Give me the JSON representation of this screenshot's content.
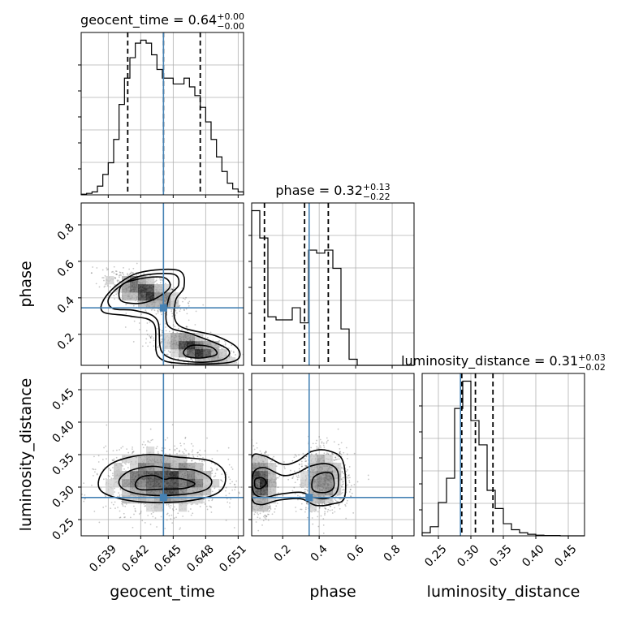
{
  "chart_data": {
    "type": "corner",
    "parameters": [
      {
        "name": "geocent_time",
        "label": "geocent_time",
        "range": [
          0.6365,
          0.6515
        ],
        "ticks": [
          0.639,
          0.642,
          0.645,
          0.648,
          0.651
        ],
        "tick_labels": [
          "0.639",
          "0.642",
          "0.645",
          "0.648",
          "0.651"
        ],
        "truth": 0.6441,
        "quantiles": [
          0.6408,
          0.6441,
          0.6475
        ],
        "title": {
          "main": "geocent_time = 0.64",
          "sup": "+0.00",
          "sub": "−0.00"
        },
        "hist_bins_x": [
          0.6365,
          0.637,
          0.6375,
          0.638,
          0.6385,
          0.639,
          0.6395,
          0.64,
          0.6405,
          0.641,
          0.6415,
          0.642,
          0.6425,
          0.643,
          0.6435,
          0.644,
          0.6445,
          0.645,
          0.6455,
          0.646,
          0.6465,
          0.647,
          0.6475,
          0.648,
          0.6485,
          0.649,
          0.6495,
          0.65,
          0.6505,
          0.651,
          0.6515
        ],
        "hist_counts": [
          0.2,
          0.5,
          1,
          3,
          7,
          11,
          19,
          31,
          40,
          47,
          52,
          53,
          52,
          48,
          43,
          40,
          40,
          38,
          38,
          40,
          37,
          34,
          30,
          25,
          19,
          13,
          8,
          4,
          2,
          1
        ]
      },
      {
        "name": "phase",
        "label": "phase",
        "range": [
          0.03,
          0.92
        ],
        "ticks": [
          0.2,
          0.4,
          0.6,
          0.8
        ],
        "tick_labels": [
          "0.2",
          "0.4",
          "0.6",
          "0.8"
        ],
        "truth": 0.345,
        "quantiles": [
          0.1,
          0.32,
          0.45
        ],
        "title": {
          "main": "phase = 0.32",
          "sup": "+0.13",
          "sub": "−0.22"
        },
        "hist_bins_x": [
          0.03,
          0.0745,
          0.119,
          0.1635,
          0.208,
          0.2525,
          0.297,
          0.3415,
          0.386,
          0.4305,
          0.475,
          0.5195,
          0.564,
          0.6085,
          0.653,
          0.6975,
          0.742,
          0.7865,
          0.831,
          0.8755,
          0.92
        ],
        "hist_counts": [
          51,
          42,
          16,
          15,
          15,
          19,
          14,
          38,
          37,
          38,
          32,
          12,
          2,
          0,
          0,
          0,
          0,
          0,
          0,
          0
        ]
      },
      {
        "name": "luminosity_distance",
        "label": "luminosity_distance",
        "range": [
          0.225,
          0.475
        ],
        "ticks": [
          0.25,
          0.3,
          0.35,
          0.4,
          0.45
        ],
        "tick_labels": [
          "0.25",
          "0.30",
          "0.35",
          "0.40",
          "0.45"
        ],
        "truth": 0.284,
        "quantiles": [
          0.286,
          0.307,
          0.334
        ],
        "title": {
          "main": "luminosity_distance = 0.31",
          "sup": "+0.03",
          "sub": "−0.02"
        },
        "hist_bins_x": [
          0.225,
          0.2375,
          0.25,
          0.2625,
          0.275,
          0.2875,
          0.3,
          0.3125,
          0.325,
          0.3375,
          0.35,
          0.3625,
          0.375,
          0.3875,
          0.4,
          0.4125,
          0.425,
          0.4375,
          0.45,
          0.4625,
          0.475
        ],
        "hist_counts": [
          1,
          3,
          11,
          19,
          42,
          51,
          38,
          30,
          15,
          9,
          4,
          2,
          1,
          0.5,
          0.2,
          0.1,
          0.1,
          0,
          0,
          0
        ]
      }
    ],
    "pairs": [
      {
        "x": "geocent_time",
        "y": "phase",
        "ylim": [
          0.03,
          0.92
        ],
        "ticks_y": [
          0.2,
          0.4,
          0.6,
          0.8
        ],
        "tick_labels_y": [
          "0.2",
          "0.4",
          "0.6",
          "0.8"
        ],
        "modes": [
          {
            "x": 0.6424,
            "y": 0.43,
            "sx": 0.0017,
            "sy": 0.055,
            "rho": -0.6,
            "n": 900
          },
          {
            "x": 0.647,
            "y": 0.12,
            "sx": 0.0017,
            "sy": 0.05,
            "rho": -0.6,
            "n": 900
          }
        ],
        "contours": [
          [
            [
              0.64,
              0.43
            ],
            [
              0.6405,
              0.48
            ],
            [
              0.6425,
              0.51
            ],
            [
              0.6442,
              0.51
            ],
            [
              0.6447,
              0.46
            ],
            [
              0.6435,
              0.4
            ],
            [
              0.642,
              0.37
            ],
            [
              0.6403,
              0.38
            ]
          ],
          [
            [
              0.639,
              0.39
            ],
            [
              0.64,
              0.46
            ],
            [
              0.642,
              0.52
            ],
            [
              0.645,
              0.53
            ],
            [
              0.6455,
              0.47
            ],
            [
              0.6446,
              0.4
            ],
            [
              0.6445,
              0.25
            ],
            [
              0.6468,
              0.2
            ],
            [
              0.65,
              0.12
            ],
            [
              0.6495,
              0.06
            ],
            [
              0.6465,
              0.05
            ],
            [
              0.644,
              0.1
            ],
            [
              0.6435,
              0.28
            ],
            [
              0.6415,
              0.33
            ],
            [
              0.6395,
              0.34
            ]
          ],
          [
            [
              0.6385,
              0.38
            ],
            [
              0.6398,
              0.47
            ],
            [
              0.642,
              0.54
            ],
            [
              0.6455,
              0.55
            ],
            [
              0.646,
              0.46
            ],
            [
              0.6452,
              0.38
            ],
            [
              0.6455,
              0.25
            ],
            [
              0.649,
              0.19
            ],
            [
              0.651,
              0.12
            ],
            [
              0.6505,
              0.05
            ],
            [
              0.646,
              0.04
            ],
            [
              0.6436,
              0.08
            ],
            [
              0.6432,
              0.26
            ],
            [
              0.641,
              0.3
            ],
            [
              0.6386,
              0.32
            ]
          ],
          [
            [
              0.646,
              0.11
            ],
            [
              0.6468,
              0.14
            ],
            [
              0.6485,
              0.13
            ],
            [
              0.649,
              0.09
            ],
            [
              0.6475,
              0.07
            ],
            [
              0.6462,
              0.08
            ]
          ]
        ]
      },
      {
        "x": "geocent_time",
        "y": "luminosity_distance",
        "ylim": [
          0.225,
          0.475
        ],
        "ticks_y": [
          0.25,
          0.3,
          0.35,
          0.4,
          0.45
        ],
        "tick_labels_y": [
          "0.25",
          "0.30",
          "0.35",
          "0.40",
          "0.45"
        ],
        "modes": [
          {
            "x": 0.644,
            "y": 0.31,
            "sx": 0.0026,
            "sy": 0.024,
            "rho": 0,
            "n": 1700
          }
        ],
        "contours": [
          [
            [
              0.642,
              0.296
            ],
            [
              0.6415,
              0.304
            ],
            [
              0.642,
              0.315
            ],
            [
              0.6432,
              0.318
            ],
            [
              0.6442,
              0.312
            ],
            [
              0.6448,
              0.314
            ],
            [
              0.646,
              0.312
            ],
            [
              0.647,
              0.305
            ],
            [
              0.646,
              0.298
            ],
            [
              0.644,
              0.297
            ]
          ],
          [
            [
              0.6405,
              0.296
            ],
            [
              0.64,
              0.31
            ],
            [
              0.641,
              0.325
            ],
            [
              0.643,
              0.332
            ],
            [
              0.645,
              0.328
            ],
            [
              0.647,
              0.326
            ],
            [
              0.6485,
              0.312
            ],
            [
              0.648,
              0.296
            ],
            [
              0.6455,
              0.288
            ],
            [
              0.6425,
              0.288
            ]
          ],
          [
            [
              0.6385,
              0.292
            ],
            [
              0.6382,
              0.315
            ],
            [
              0.6395,
              0.338
            ],
            [
              0.6425,
              0.35
            ],
            [
              0.6455,
              0.346
            ],
            [
              0.6485,
              0.34
            ],
            [
              0.6498,
              0.32
            ],
            [
              0.6492,
              0.292
            ],
            [
              0.646,
              0.278
            ],
            [
              0.6415,
              0.278
            ]
          ]
        ]
      },
      {
        "x": "phase",
        "y": "luminosity_distance",
        "ylim": [
          0.225,
          0.475
        ],
        "ticks_y": [
          0.25,
          0.3,
          0.35,
          0.4,
          0.45
        ],
        "tick_labels_y": [
          "0.25",
          "0.30",
          "0.35",
          "0.40",
          "0.45"
        ],
        "modes": [
          {
            "x": 0.08,
            "y": 0.306,
            "sx": 0.04,
            "sy": 0.022,
            "rho": 0,
            "n": 900
          },
          {
            "x": 0.42,
            "y": 0.31,
            "sx": 0.07,
            "sy": 0.024,
            "rho": 0,
            "n": 1000
          }
        ],
        "contours": [
          [
            [
              0.05,
              0.3
            ],
            [
              0.05,
              0.312
            ],
            [
              0.09,
              0.314
            ],
            [
              0.11,
              0.306
            ],
            [
              0.08,
              0.298
            ]
          ],
          [
            [
              0.36,
              0.3
            ],
            [
              0.37,
              0.315
            ],
            [
              0.42,
              0.322
            ],
            [
              0.47,
              0.32
            ],
            [
              0.48,
              0.3
            ],
            [
              0.44,
              0.292
            ],
            [
              0.38,
              0.293
            ]
          ],
          [
            [
              0.04,
              0.292
            ],
            [
              0.04,
              0.322
            ],
            [
              0.1,
              0.33
            ],
            [
              0.2,
              0.318
            ],
            [
              0.28,
              0.322
            ],
            [
              0.35,
              0.332
            ],
            [
              0.44,
              0.336
            ],
            [
              0.5,
              0.325
            ],
            [
              0.5,
              0.295
            ],
            [
              0.45,
              0.283
            ],
            [
              0.37,
              0.284
            ],
            [
              0.3,
              0.292
            ],
            [
              0.18,
              0.289
            ],
            [
              0.1,
              0.284
            ]
          ],
          [
            [
              0.03,
              0.285
            ],
            [
              0.03,
              0.345
            ],
            [
              0.1,
              0.348
            ],
            [
              0.2,
              0.335
            ],
            [
              0.28,
              0.34
            ],
            [
              0.36,
              0.355
            ],
            [
              0.45,
              0.356
            ],
            [
              0.53,
              0.34
            ],
            [
              0.54,
              0.285
            ],
            [
              0.47,
              0.274
            ],
            [
              0.38,
              0.272
            ],
            [
              0.3,
              0.282
            ],
            [
              0.18,
              0.28
            ],
            [
              0.08,
              0.273
            ]
          ]
        ]
      }
    ],
    "grid": true,
    "truth_color": "#4682b4",
    "line_color": "#000000"
  }
}
